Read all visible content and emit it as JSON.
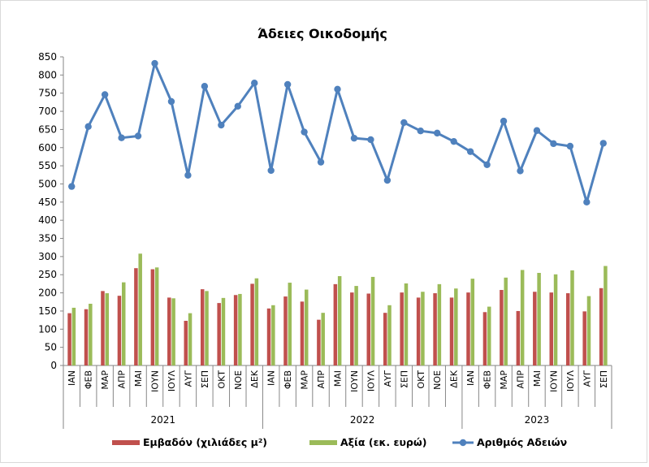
{
  "chart_data": {
    "type": "bar+line",
    "title": "Άδειες Οικοδομής",
    "ylim": [
      0,
      850
    ],
    "ytick_step": 50,
    "grid": false,
    "legend_position": "bottom",
    "years": [
      {
        "label": "2021",
        "count": 12
      },
      {
        "label": "2022",
        "count": 12
      },
      {
        "label": "2023",
        "count": 9
      }
    ],
    "categories": [
      "ΙΑΝ",
      "ΦΕΒ",
      "ΜΑΡ",
      "ΑΠΡ",
      "ΜΑΙ",
      "ΙΟΥΝ",
      "ΙΟΥΛ",
      "ΑΥΓ",
      "ΣΕΠ",
      "ΟΚΤ",
      "ΝΟΕ",
      "ΔΕΚ",
      "ΙΑΝ",
      "ΦΕΒ",
      "ΜΑΡ",
      "ΑΠΡ",
      "ΜΑΙ",
      "ΙΟΥΝ",
      "ΙΟΥΛ",
      "ΑΥΓ",
      "ΣΕΠ",
      "ΟΚΤ",
      "ΝΟΕ",
      "ΔΕΚ",
      "ΙΑΝ",
      "ΦΕΒ",
      "ΜΑΡ",
      "ΑΠΡ",
      "ΜΑΙ",
      "ΙΟΥΝ",
      "ΙΟΥΛ",
      "ΑΥΓ",
      "ΣΕΠ"
    ],
    "series": [
      {
        "name": "Εμβαδόν (χιλιάδες μ²)",
        "type": "bar",
        "color": "#c0504d",
        "values": [
          144,
          155,
          205,
          192,
          268,
          265,
          187,
          123,
          210,
          172,
          194,
          225,
          157,
          190,
          176,
          126,
          224,
          201,
          198,
          145,
          201,
          187,
          199,
          187,
          201,
          147,
          208,
          150,
          203,
          201,
          199,
          149,
          213
        ]
      },
      {
        "name": "Αξία (εκ. ευρώ)",
        "type": "bar",
        "color": "#9bbb59",
        "values": [
          159,
          170,
          199,
          229,
          308,
          270,
          185,
          144,
          205,
          186,
          197,
          240,
          166,
          228,
          209,
          145,
          246,
          219,
          244,
          166,
          226,
          203,
          224,
          212,
          239,
          162,
          242,
          263,
          255,
          251,
          262,
          191,
          274
        ]
      },
      {
        "name": "Αριθμός Αδειών",
        "type": "line",
        "color": "#4f81bd",
        "values": [
          493,
          658,
          746,
          627,
          632,
          832,
          727,
          524,
          769,
          662,
          714,
          778,
          537,
          774,
          643,
          560,
          761,
          626,
          622,
          510,
          669,
          646,
          640,
          617,
          589,
          553,
          673,
          536,
          647,
          611,
          604,
          450,
          612
        ]
      }
    ]
  }
}
